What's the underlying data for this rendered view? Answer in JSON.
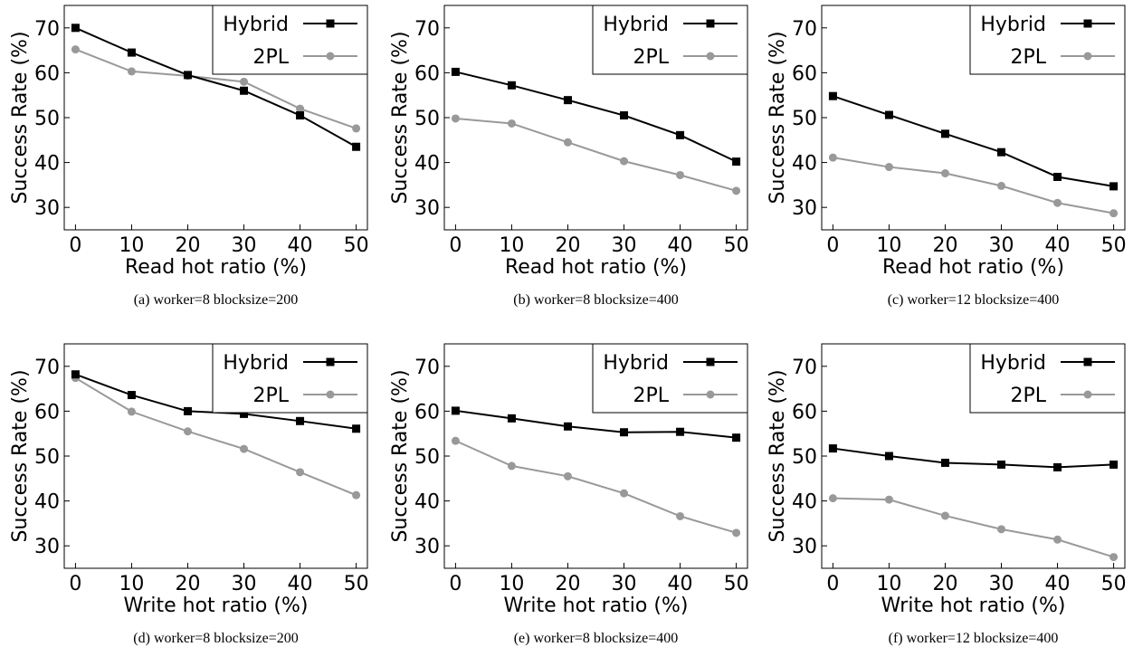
{
  "chart_data": [
    {
      "type": "line",
      "caption": "(a)  worker=8 blocksize=200",
      "xlabel": "Read hot ratio (%)",
      "ylabel": "Success Rate (%)",
      "x": [
        0,
        10,
        20,
        30,
        40,
        50
      ],
      "xticks": [
        "0",
        "10",
        "20",
        "30",
        "40",
        "50"
      ],
      "yticks": [
        "30",
        "40",
        "50",
        "60",
        "70"
      ],
      "xlim": [
        -2,
        52
      ],
      "ylim": [
        25,
        75
      ],
      "legend_position": "top-right",
      "grid": false,
      "series": [
        {
          "name": "Hybrid",
          "marker": "square",
          "color": "#000000",
          "values": [
            70.0,
            64.5,
            59.5,
            56.0,
            50.5,
            43.5
          ]
        },
        {
          "name": "2PL",
          "marker": "circle",
          "color": "#999999",
          "values": [
            65.2,
            60.3,
            59.3,
            58.0,
            52.0,
            47.6
          ]
        }
      ]
    },
    {
      "type": "line",
      "caption": "(b)  worker=8 blocksize=400",
      "xlabel": "Read hot ratio (%)",
      "ylabel": "Success Rate (%)",
      "x": [
        0,
        10,
        20,
        30,
        40,
        50
      ],
      "xticks": [
        "0",
        "10",
        "20",
        "30",
        "40",
        "50"
      ],
      "yticks": [
        "30",
        "40",
        "50",
        "60",
        "70"
      ],
      "xlim": [
        -2,
        52
      ],
      "ylim": [
        25,
        75
      ],
      "legend_position": "top-right",
      "grid": false,
      "series": [
        {
          "name": "Hybrid",
          "marker": "square",
          "color": "#000000",
          "values": [
            60.2,
            57.2,
            53.9,
            50.5,
            46.1,
            40.2
          ]
        },
        {
          "name": "2PL",
          "marker": "circle",
          "color": "#999999",
          "values": [
            49.8,
            48.7,
            44.5,
            40.3,
            37.2,
            33.7
          ]
        }
      ]
    },
    {
      "type": "line",
      "caption": "(c)  worker=12 blocksize=400",
      "xlabel": "Read hot ratio (%)",
      "ylabel": "Success Rate (%)",
      "x": [
        0,
        10,
        20,
        30,
        40,
        50
      ],
      "xticks": [
        "0",
        "10",
        "20",
        "30",
        "40",
        "50"
      ],
      "yticks": [
        "30",
        "40",
        "50",
        "60",
        "70"
      ],
      "xlim": [
        -2,
        52
      ],
      "ylim": [
        25,
        75
      ],
      "legend_position": "top-right",
      "grid": false,
      "series": [
        {
          "name": "Hybrid",
          "marker": "square",
          "color": "#000000",
          "values": [
            54.8,
            50.6,
            46.4,
            42.3,
            36.8,
            34.7
          ]
        },
        {
          "name": "2PL",
          "marker": "circle",
          "color": "#999999",
          "values": [
            41.1,
            39.0,
            37.6,
            34.8,
            31.0,
            28.7
          ]
        }
      ]
    },
    {
      "type": "line",
      "caption": "(d)  worker=8 blocksize=200",
      "xlabel": "Write hot ratio (%)",
      "ylabel": "Success Rate (%)",
      "x": [
        0,
        10,
        20,
        30,
        40,
        50
      ],
      "xticks": [
        "0",
        "10",
        "20",
        "30",
        "40",
        "50"
      ],
      "yticks": [
        "30",
        "40",
        "50",
        "60",
        "70"
      ],
      "xlim": [
        -2,
        52
      ],
      "ylim": [
        25,
        75
      ],
      "legend_position": "top-right",
      "grid": false,
      "series": [
        {
          "name": "Hybrid",
          "marker": "square",
          "color": "#000000",
          "values": [
            68.2,
            63.6,
            60.0,
            59.4,
            57.8,
            56.1
          ]
        },
        {
          "name": "2PL",
          "marker": "circle",
          "color": "#999999",
          "values": [
            67.4,
            59.9,
            55.5,
            51.6,
            46.4,
            41.3
          ]
        }
      ]
    },
    {
      "type": "line",
      "caption": "(e)  worker=8 blocksize=400",
      "xlabel": "Write hot ratio (%)",
      "ylabel": "Success Rate (%)",
      "x": [
        0,
        10,
        20,
        30,
        40,
        50
      ],
      "xticks": [
        "0",
        "10",
        "20",
        "30",
        "40",
        "50"
      ],
      "yticks": [
        "30",
        "40",
        "50",
        "60",
        "70"
      ],
      "xlim": [
        -2,
        52
      ],
      "ylim": [
        25,
        75
      ],
      "legend_position": "top-right",
      "grid": false,
      "series": [
        {
          "name": "Hybrid",
          "marker": "square",
          "color": "#000000",
          "values": [
            60.1,
            58.4,
            56.6,
            55.3,
            55.4,
            54.1
          ]
        },
        {
          "name": "2PL",
          "marker": "circle",
          "color": "#999999",
          "values": [
            53.4,
            47.8,
            45.5,
            41.7,
            36.6,
            32.9
          ]
        }
      ]
    },
    {
      "type": "line",
      "caption": "(f)  worker=12 blocksize=400",
      "xlabel": "Write hot ratio (%)",
      "ylabel": "Success Rate (%)",
      "x": [
        0,
        10,
        20,
        30,
        40,
        50
      ],
      "xticks": [
        "0",
        "10",
        "20",
        "30",
        "40",
        "50"
      ],
      "yticks": [
        "30",
        "40",
        "50",
        "60",
        "70"
      ],
      "xlim": [
        -2,
        52
      ],
      "ylim": [
        25,
        75
      ],
      "legend_position": "top-right",
      "grid": false,
      "series": [
        {
          "name": "Hybrid",
          "marker": "square",
          "color": "#000000",
          "values": [
            51.7,
            50.0,
            48.5,
            48.1,
            47.5,
            48.1
          ]
        },
        {
          "name": "2PL",
          "marker": "circle",
          "color": "#999999",
          "values": [
            40.6,
            40.3,
            36.7,
            33.7,
            31.4,
            27.5
          ]
        }
      ]
    }
  ]
}
